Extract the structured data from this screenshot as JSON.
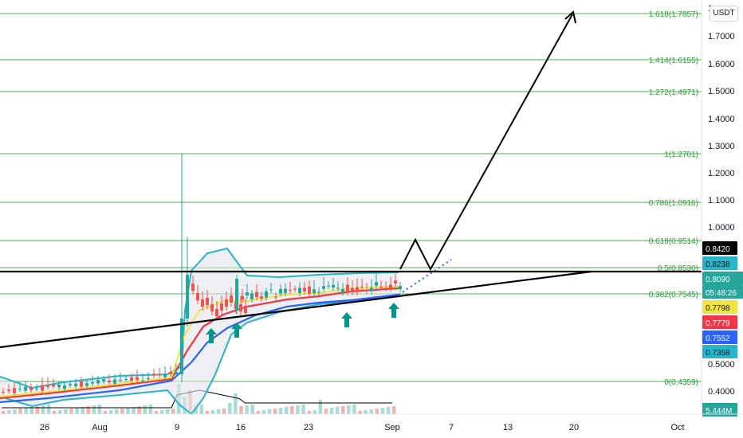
{
  "currency": "USDT",
  "colors": {
    "fib_line": "#4caf50",
    "fib_text": "#2e9e3a",
    "trend_line": "#000000",
    "ema_short": "#f0e442",
    "ema_mid": "#f23645",
    "ema_long": "#2962ff",
    "bollinger": "#26b5c9",
    "bollinger_fill": "#e1e4ea",
    "candle_up": "#26a69a",
    "candle_down": "#ef5350",
    "arrow": "#009688",
    "projection": "#000000",
    "dotted": "#2962ff"
  },
  "chart_data": {
    "type": "candlestick",
    "pair_quote": "USDT",
    "yaxis": {
      "ticks": [
        {
          "value": 1.7,
          "label": "1.7000"
        },
        {
          "value": 1.6,
          "label": "1.6000"
        },
        {
          "value": 1.5,
          "label": "1.5000"
        },
        {
          "value": 1.4,
          "label": "1.4000"
        },
        {
          "value": 1.3,
          "label": "1.3000"
        },
        {
          "value": 1.2,
          "label": "1.2000"
        },
        {
          "value": 1.1,
          "label": "1.1000"
        },
        {
          "value": 1.0,
          "label": "1.0000"
        },
        {
          "value": 0.5,
          "label": "0.5000"
        },
        {
          "value": 0.4,
          "label": "0.4000"
        }
      ],
      "top_label": "1"
    },
    "xaxis": {
      "ticks": [
        "26",
        "Aug",
        "9",
        "16",
        "23",
        "Sep",
        "7",
        "13",
        "20",
        "Oct"
      ]
    },
    "fib_levels": [
      {
        "label": "1.618(1.7857)",
        "value": 1.7857
      },
      {
        "label": "1.414(1.6155)",
        "value": 1.6155
      },
      {
        "label": "1.272(1.4971)",
        "value": 1.4971
      },
      {
        "label": "1(1.2701)",
        "value": 1.2701
      },
      {
        "label": "0.786(1.0916)",
        "value": 1.0916
      },
      {
        "label": "0.618(0.9514)",
        "value": 0.9514
      },
      {
        "label": "0.5(0.8530)",
        "value": 0.853
      },
      {
        "label": "0.382(0.7545)",
        "value": 0.7545
      },
      {
        "label": "0(0.4359)",
        "value": 0.4359
      }
    ],
    "price_badges": [
      {
        "label": "0.8420",
        "color": "#000000",
        "text_color": "#ffffff"
      },
      {
        "label": "0.8238",
        "color": "#26b5c9",
        "text_color": "#131722"
      },
      {
        "label": "0.8090",
        "color": "#26a69a",
        "text_color": "#ffffff"
      },
      {
        "label": "05:48:26",
        "color": "#26a69a",
        "text_color": "#ffffff"
      },
      {
        "label": "0.7798",
        "color": "#f0e442",
        "text_color": "#131722"
      },
      {
        "label": "0.7779",
        "color": "#f23645",
        "text_color": "#ffffff"
      },
      {
        "label": "0.7552",
        "color": "#2962ff",
        "text_color": "#ffffff"
      },
      {
        "label": "0.7358",
        "color": "#26b5c9",
        "text_color": "#131722"
      },
      {
        "label": "5.444M",
        "color": "#26a69a",
        "text_color": "#ffffff"
      }
    ]
  }
}
